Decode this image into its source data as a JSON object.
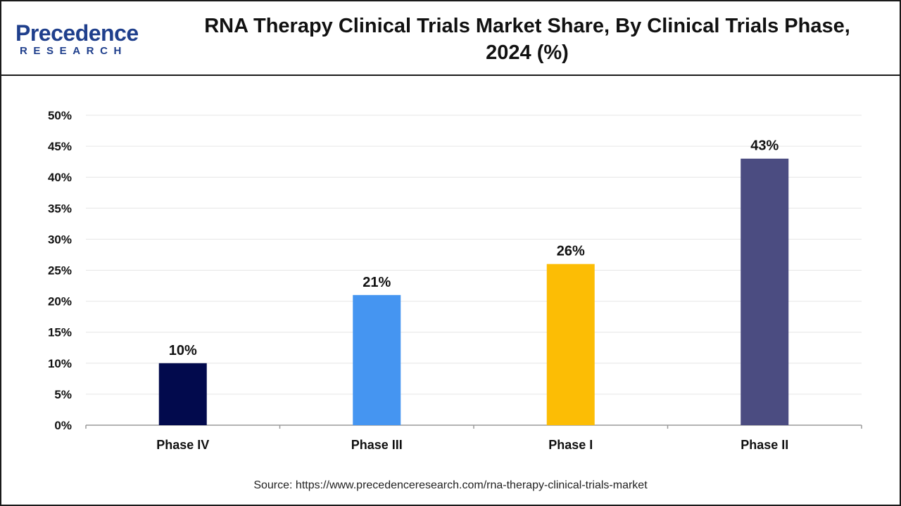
{
  "brand": {
    "name": "Precedence",
    "sub": "RESEARCH",
    "color": "#1f3f8c"
  },
  "chart_data": {
    "type": "bar",
    "title": "RNA Therapy Clinical Trials Market Share, By Clinical Trials Phase, 2024 (%)",
    "categories": [
      "Phase IV",
      "Phase III",
      "Phase I",
      "Phase II"
    ],
    "values": [
      10,
      21,
      26,
      43
    ],
    "value_labels": [
      "10%",
      "21%",
      "26%",
      "43%"
    ],
    "colors": [
      "#020a4d",
      "#4595f1",
      "#fcbd05",
      "#4b4c81"
    ],
    "xlabel": "",
    "ylabel": "",
    "ylim": [
      0,
      50
    ],
    "yticks": [
      0,
      5,
      10,
      15,
      20,
      25,
      30,
      35,
      40,
      45,
      50
    ],
    "ytick_labels": [
      "0%",
      "5%",
      "10%",
      "15%",
      "20%",
      "25%",
      "30%",
      "35%",
      "40%",
      "45%",
      "50%"
    ],
    "grid": true,
    "legend": "none"
  },
  "source": "Source: https://www.precedenceresearch.com/rna-therapy-clinical-trials-market"
}
